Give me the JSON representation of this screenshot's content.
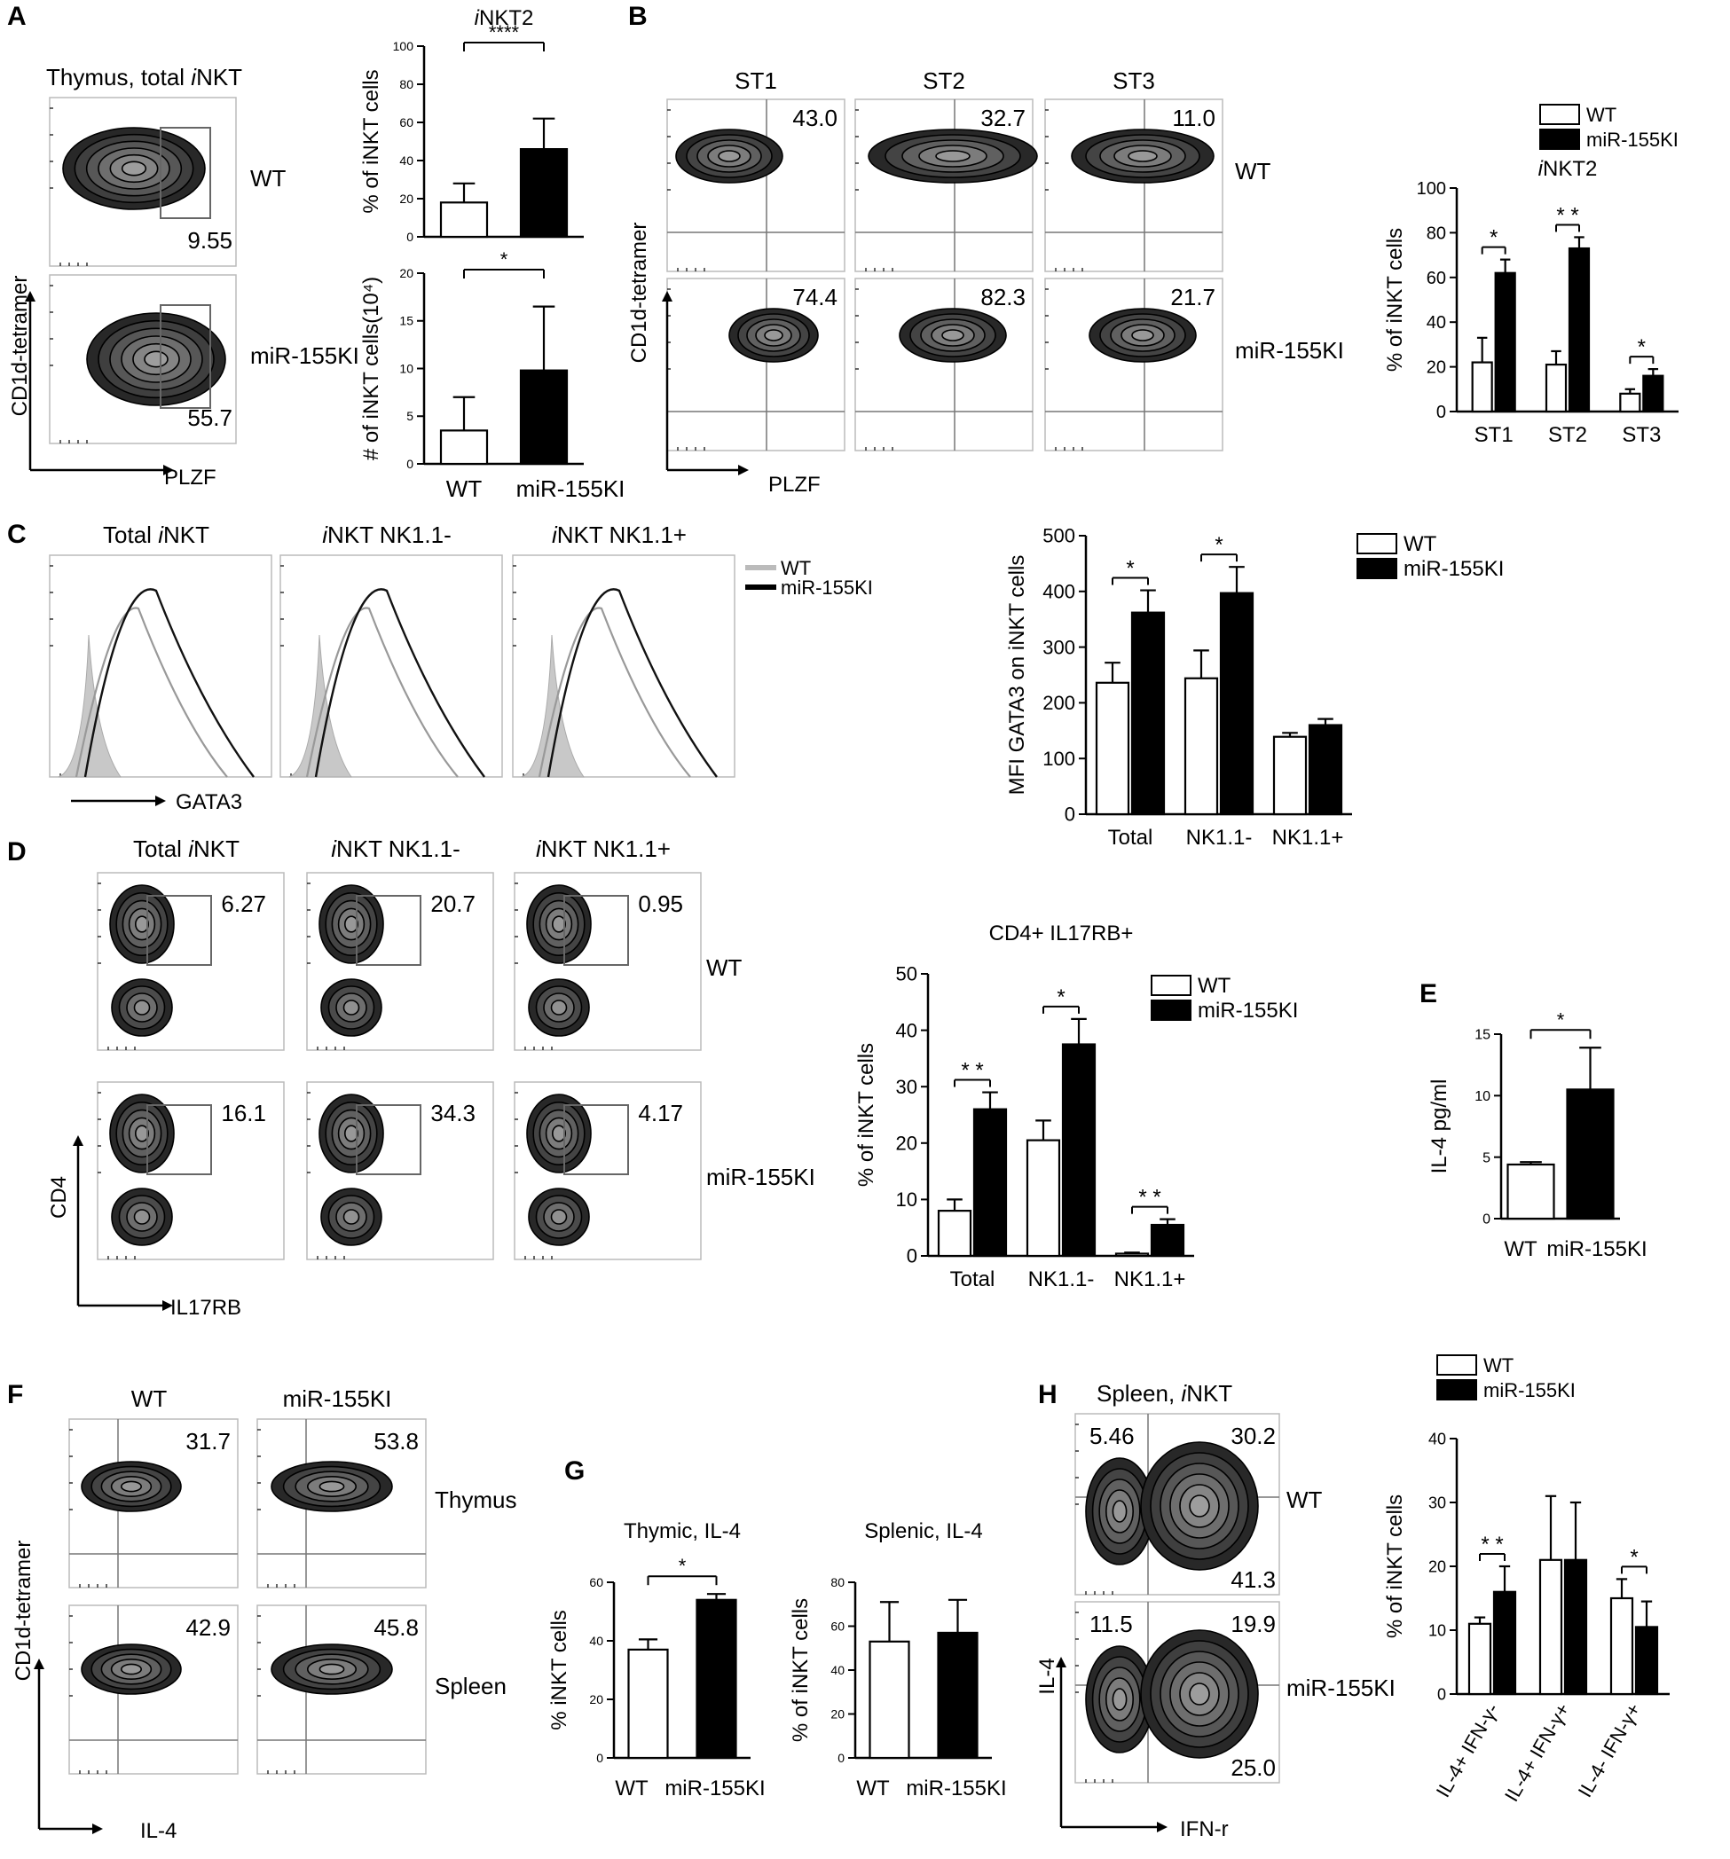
{
  "panel_letters": [
    "A",
    "B",
    "C",
    "D",
    "E",
    "F",
    "G",
    "H"
  ],
  "flow": {
    "A": {
      "title": "Thymus, total iNKT",
      "title_a": "Thymus, total ",
      "title_b": "i",
      "title_c": "NKT",
      "xlabel": "PLZF",
      "ylabel": "CD1d-tetramer",
      "rows": [
        "WT",
        "miR-155KI"
      ],
      "values": [
        "9.55",
        "55.7"
      ]
    },
    "B": {
      "cols": [
        "ST1",
        "ST2",
        "ST3"
      ],
      "rows": [
        "WT",
        "miR-155KI"
      ],
      "values": [
        [
          "43.0",
          "32.7",
          "11.0"
        ],
        [
          "74.4",
          "82.3",
          "21.7"
        ]
      ],
      "xlabel": "PLZF",
      "ylabel": "CD1d-tetramer"
    },
    "C": {
      "cols": [
        "Total iNKT",
        "iNKT NK1.1-",
        "iNKT NK1.1+"
      ],
      "col_parts": [
        [
          "Total ",
          "i",
          "NKT",
          ""
        ],
        [
          "",
          "i",
          "NKT",
          "  NK1.1-"
        ],
        [
          "",
          "i",
          "NKT",
          "  NK1.1+"
        ]
      ],
      "xlabel": "GATA3",
      "legend": [
        "WT",
        "miR-155KI"
      ]
    },
    "D": {
      "cols": [
        "Total iNKT",
        "iNKT NK1.1-",
        "iNKT NK1.1+"
      ],
      "col_parts": [
        [
          "Total ",
          "i",
          "NKT",
          ""
        ],
        [
          "",
          "i",
          "NKT",
          "  NK1.1-"
        ],
        [
          "",
          "i",
          "NKT",
          "  NK1.1+"
        ]
      ],
      "rows": [
        "WT",
        "miR-155KI"
      ],
      "values": [
        [
          "6.27",
          "20.7",
          "0.95"
        ],
        [
          "16.1",
          "34.3",
          "4.17"
        ]
      ],
      "xlabel": "IL17RB",
      "ylabel": "CD4"
    },
    "F": {
      "cols": [
        "WT",
        "miR-155KI"
      ],
      "rows": [
        "Thymus",
        "Spleen"
      ],
      "values": [
        [
          "31.7",
          "53.8"
        ],
        [
          "42.9",
          "45.8"
        ]
      ],
      "xlabel": "IL-4",
      "ylabel": "CD1d-tetramer"
    },
    "H": {
      "title": "Spleen, iNKT",
      "title_a": "Spleen, ",
      "title_b": "i",
      "title_c": "NKT",
      "rows": [
        "WT",
        "miR-155KI"
      ],
      "values": [
        [
          "5.46",
          "30.2",
          "41.3"
        ],
        [
          "11.5",
          "19.9",
          "25.0"
        ]
      ],
      "xlabel": "IFN-r",
      "ylabel": "IL-4"
    }
  },
  "colors": {
    "wt_bar": "#ffffff",
    "ki_bar": "#000000",
    "wt_hist": "#c8c8c8"
  },
  "chart_data": [
    {
      "id": "A_top",
      "type": "bar",
      "title": "iNKT2",
      "ylabel": "% of iNKT cells",
      "categories": [
        "WT",
        "miR-155KI"
      ],
      "values": [
        18,
        46
      ],
      "errors": [
        10,
        16
      ],
      "ylim": [
        0,
        100
      ],
      "yticks": [
        0,
        20,
        40,
        60,
        80,
        100
      ],
      "significance": [
        {
          "pair": [
            0,
            1
          ],
          "label": "****"
        }
      ]
    },
    {
      "id": "A_bottom",
      "type": "bar",
      "title": "",
      "ylabel": "# of iNKT cells(10⁴)",
      "categories": [
        "WT",
        "miR-155KI"
      ],
      "values": [
        3.5,
        9.8
      ],
      "errors": [
        3.5,
        6.7
      ],
      "ylim": [
        0,
        20
      ],
      "yticks": [
        0,
        5,
        10,
        15,
        20
      ],
      "significance": [
        {
          "pair": [
            0,
            1
          ],
          "label": "*"
        }
      ]
    },
    {
      "id": "B",
      "type": "bar",
      "title": "iNKT2",
      "ylabel": "% of iNKT cells",
      "categories": [
        "ST1",
        "ST2",
        "ST3"
      ],
      "series": [
        {
          "name": "WT",
          "values": [
            22,
            21,
            8
          ],
          "errors": [
            11,
            6,
            2
          ]
        },
        {
          "name": "miR-155KI",
          "values": [
            62,
            73,
            16
          ],
          "errors": [
            6,
            5,
            3
          ]
        }
      ],
      "ylim": [
        0,
        100
      ],
      "yticks": [
        0,
        20,
        40,
        60,
        80,
        100
      ],
      "legend": "top",
      "significance": [
        "*",
        "* *",
        "*"
      ]
    },
    {
      "id": "C",
      "type": "bar",
      "title": "",
      "ylabel": "MFI GATA3 on iNKT cells",
      "categories": [
        "Total",
        "NK1.1-",
        "NK1.1+"
      ],
      "series": [
        {
          "name": "WT",
          "values": [
            236,
            244,
            139
          ],
          "errors": [
            36,
            50,
            7
          ]
        },
        {
          "name": "miR-155KI",
          "values": [
            362,
            397,
            160
          ],
          "errors": [
            40,
            47,
            11
          ]
        }
      ],
      "ylim": [
        0,
        500
      ],
      "yticks": [
        0,
        100,
        200,
        300,
        400,
        500
      ],
      "legend": "top-right",
      "significance": [
        "*",
        "*",
        ""
      ]
    },
    {
      "id": "D",
      "type": "bar",
      "title": "CD4+ IL17RB+",
      "ylabel": "% of iNKT cells",
      "categories": [
        "Total",
        "NK1.1-",
        "NK1.1+"
      ],
      "series": [
        {
          "name": "WT",
          "values": [
            8,
            20.5,
            0.4
          ],
          "errors": [
            2,
            3.5,
            0.2
          ]
        },
        {
          "name": "miR-155KI",
          "values": [
            26,
            37.5,
            5.5
          ],
          "errors": [
            3,
            4.5,
            1
          ]
        }
      ],
      "ylim": [
        0,
        50
      ],
      "yticks": [
        0,
        10,
        20,
        30,
        40,
        50
      ],
      "legend": "top-right",
      "significance": [
        "* *",
        "*",
        "* *"
      ]
    },
    {
      "id": "E",
      "type": "bar",
      "title": "",
      "ylabel": "IL-4 pg/ml",
      "categories": [
        "WT",
        "miR-155KI"
      ],
      "values": [
        4.4,
        10.5
      ],
      "errors": [
        0.2,
        3.4
      ],
      "ylim": [
        0,
        15
      ],
      "yticks": [
        0,
        5,
        10,
        15
      ],
      "significance": [
        {
          "pair": [
            0,
            1
          ],
          "label": "*"
        }
      ]
    },
    {
      "id": "G_left",
      "type": "bar",
      "title": "Thymic, IL-4",
      "ylabel": "% iNKT cells",
      "categories": [
        "WT",
        "miR-155KI"
      ],
      "values": [
        37,
        54
      ],
      "errors": [
        3.5,
        2
      ],
      "ylim": [
        0,
        60
      ],
      "yticks": [
        0,
        20,
        40,
        60
      ],
      "significance": [
        {
          "pair": [
            0,
            1
          ],
          "label": "*"
        }
      ]
    },
    {
      "id": "G_right",
      "type": "bar",
      "title": "Splenic, IL-4",
      "ylabel": "% of iNKT cells",
      "categories": [
        "WT",
        "miR-155KI"
      ],
      "values": [
        53,
        57
      ],
      "errors": [
        18,
        15
      ],
      "ylim": [
        0,
        80
      ],
      "yticks": [
        0,
        20,
        40,
        60,
        80
      ],
      "significance": []
    },
    {
      "id": "H",
      "type": "bar",
      "title": "",
      "ylabel": "% of iNKT cells",
      "categories": [
        "IL-4+ IFN-γ-",
        "IL-4+ IFN-γ+",
        "IL-4- IFN-γ+"
      ],
      "series": [
        {
          "name": "WT",
          "values": [
            11,
            21,
            15
          ],
          "errors": [
            1,
            10,
            3
          ]
        },
        {
          "name": "miR-155KI",
          "values": [
            16,
            21,
            10.5
          ],
          "errors": [
            4,
            9,
            4
          ]
        }
      ],
      "ylim": [
        0,
        40
      ],
      "yticks": [
        0,
        10,
        20,
        30,
        40
      ],
      "legend": "top",
      "significance": [
        "* *",
        "",
        "*"
      ]
    }
  ]
}
